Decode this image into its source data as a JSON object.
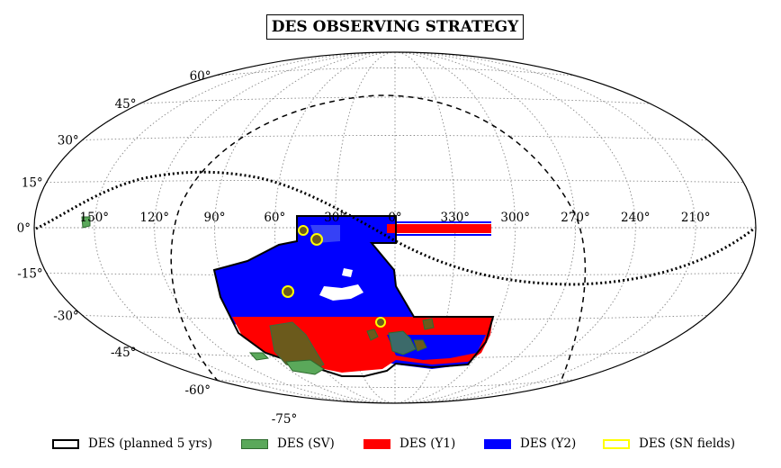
{
  "chart_data": {
    "type": "map",
    "title": "DES OBSERVING STRATEGY",
    "projection": "Aitoff",
    "ra_tick_labels": [
      "150°",
      "120°",
      "90°",
      "60°",
      "30°",
      "0°",
      "330°",
      "300°",
      "270°",
      "240°",
      "210°"
    ],
    "ra_ticks": [
      150,
      120,
      90,
      60,
      30,
      0,
      330,
      300,
      270,
      240,
      210
    ],
    "dec_tick_labels": [
      "60°",
      "45°",
      "30°",
      "15°",
      "0°",
      "-15°",
      "-30°",
      "-45°",
      "-60°",
      "-75°"
    ],
    "dec_ticks": [
      60,
      45,
      30,
      15,
      0,
      -15,
      -30,
      -45,
      -60,
      -75
    ],
    "grid": true,
    "legend": {
      "placement": "bottom",
      "entries": [
        {
          "label": "DES (planned 5 yrs)",
          "color": "#000000",
          "style": "outline"
        },
        {
          "label": "DES (SV)",
          "color": "#5aa85a",
          "style": "fill"
        },
        {
          "label": "DES (Y1)",
          "color": "#ff0000",
          "style": "fill"
        },
        {
          "label": "DES (Y2)",
          "color": "#0000ff",
          "style": "fill"
        },
        {
          "label": "DES (SN fields)",
          "color": "#ffff00",
          "style": "outline"
        }
      ]
    },
    "regions": {
      "footprint_ra_range": [
        -60,
        100
      ],
      "footprint_dec_range": [
        -65,
        5
      ],
      "y1_band_dec": [
        -65,
        -40
      ],
      "y2_band_dec": [
        -40,
        5
      ]
    },
    "colors": {
      "y1": "#ff0000",
      "y2": "#0000ff",
      "sv": "#5aa85a",
      "sv_overlap": "#6b5a1c",
      "sn": "#ffff00",
      "grid": "#888888",
      "outline": "#000000"
    }
  }
}
